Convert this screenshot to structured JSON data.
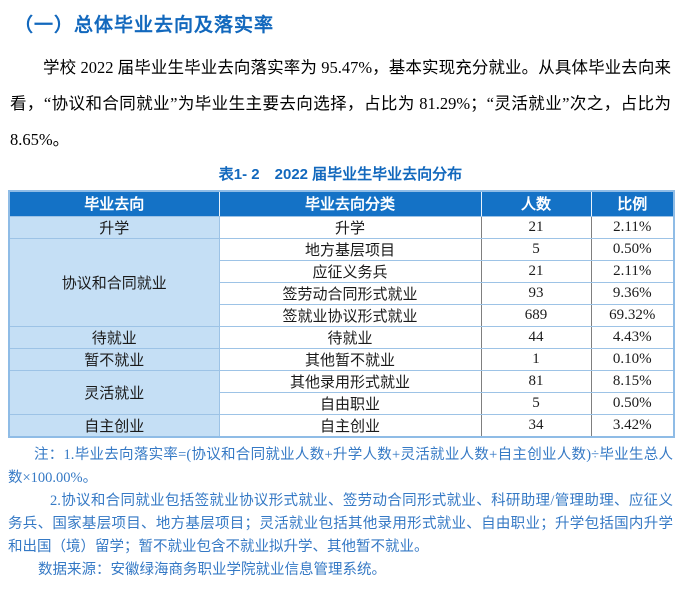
{
  "page": {
    "heading": "（一）总体毕业去向及落实率",
    "paragraph": "学校 2022 届毕业生毕业去向落实率为 95.47%，基本实现充分就业。从具体毕业去向来看，“协议和合同就业”为毕业生主要去向选择，占比为 81.29%；“灵活就业”次之，占比为 8.65%。"
  },
  "table": {
    "title": "表1- 2　2022 届毕业生毕业去向分布",
    "headers": [
      "毕业去向",
      "毕业去向分类",
      "人数",
      "比例"
    ],
    "groups": [
      {
        "category": "升学",
        "rows": [
          {
            "type": "升学",
            "count": "21",
            "ratio": "2.11%"
          }
        ]
      },
      {
        "category": "协议和合同就业",
        "rows": [
          {
            "type": "地方基层项目",
            "count": "5",
            "ratio": "0.50%"
          },
          {
            "type": "应征义务兵",
            "count": "21",
            "ratio": "2.11%"
          },
          {
            "type": "签劳动合同形式就业",
            "count": "93",
            "ratio": "9.36%"
          },
          {
            "type": "签就业协议形式就业",
            "count": "689",
            "ratio": "69.32%"
          }
        ]
      },
      {
        "category": "待就业",
        "rows": [
          {
            "type": "待就业",
            "count": "44",
            "ratio": "4.43%"
          }
        ]
      },
      {
        "category": "暂不就业",
        "rows": [
          {
            "type": "其他暂不就业",
            "count": "1",
            "ratio": "0.10%"
          }
        ]
      },
      {
        "category": "灵活就业",
        "rows": [
          {
            "type": "其他录用形式就业",
            "count": "81",
            "ratio": "8.15%"
          },
          {
            "type": "自由职业",
            "count": "5",
            "ratio": "0.50%"
          }
        ]
      },
      {
        "category": "自主创业",
        "rows": [
          {
            "type": "自主创业",
            "count": "34",
            "ratio": "3.42%"
          }
        ]
      }
    ]
  },
  "notes": {
    "note1": "注：1.毕业去向落实率=(协议和合同就业人数+升学人数+灵活就业人数+自主创业人数)÷毕业生总人数×100.00%。",
    "note2": "2.协议和合同就业包括签就业协议形式就业、签劳动合同形式就业、科研助理/管理助理、应征义务兵、国家基层项目、地方基层项目；灵活就业包括其他录用形式就业、自由职业；升学包括国内升学和出国（境）留学；暂不就业包含不就业拟升学、其他暂不就业。",
    "source": "数据来源：安徽绿海商务职业学院就业信息管理系统。"
  },
  "colors": {
    "heading_blue": "#1268BD",
    "table_header_bg": "#1472C6",
    "category_cell_bg": "#C5DFF5",
    "note_text_blue": "#3579C5",
    "border_light_blue": "#9DC3E6",
    "border_dark_gray": "#7F7F7F"
  }
}
